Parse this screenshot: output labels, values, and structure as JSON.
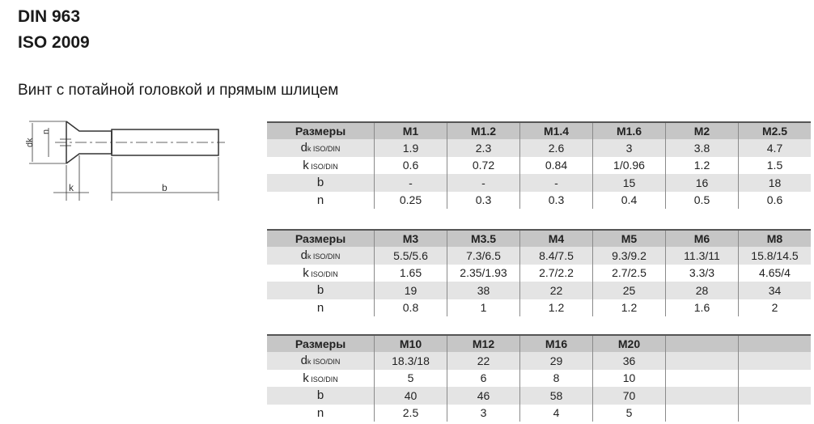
{
  "header": {
    "line1": "DIN 963",
    "line2": "ISO 2009"
  },
  "subtitle": "Винт с потайной головкой и прямым шлицем",
  "drawing": {
    "labels": {
      "dk": "dk",
      "n": "n",
      "k": "k",
      "b": "b"
    }
  },
  "row_labels": [
    {
      "main": "d",
      "sub": "k ISO/DIN"
    },
    {
      "main": "k",
      "sub": " ISO/DIN"
    },
    {
      "main": "b",
      "sub": ""
    },
    {
      "main": "n",
      "sub": ""
    }
  ],
  "tables": [
    {
      "header_label": "Размеры",
      "sizes": [
        "M1",
        "M1.2",
        "M1.4",
        "M1.6",
        "M2",
        "M2.5"
      ],
      "rows": [
        [
          "1.9",
          "2.3",
          "2.6",
          "3",
          "3.8",
          "4.7"
        ],
        [
          "0.6",
          "0.72",
          "0.84",
          "1/0.96",
          "1.2",
          "1.5"
        ],
        [
          "-",
          "-",
          "-",
          "15",
          "16",
          "18"
        ],
        [
          "0.25",
          "0.3",
          "0.3",
          "0.4",
          "0.5",
          "0.6"
        ]
      ]
    },
    {
      "header_label": "Размеры",
      "sizes": [
        "M3",
        "M3.5",
        "M4",
        "M5",
        "M6",
        "M8"
      ],
      "rows": [
        [
          "5.5/5.6",
          "7.3/6.5",
          "8.4/7.5",
          "9.3/9.2",
          "11.3/11",
          "15.8/14.5"
        ],
        [
          "1.65",
          "2.35/1.93",
          "2.7/2.2",
          "2.7/2.5",
          "3.3/3",
          "4.65/4"
        ],
        [
          "19",
          "38",
          "22",
          "25",
          "28",
          "34"
        ],
        [
          "0.8",
          "1",
          "1.2",
          "1.2",
          "1.6",
          "2"
        ]
      ]
    },
    {
      "header_label": "Размеры",
      "sizes": [
        "M10",
        "M12",
        "M16",
        "M20",
        "",
        ""
      ],
      "rows": [
        [
          "18.3/18",
          "22",
          "29",
          "36",
          "",
          ""
        ],
        [
          "5",
          "6",
          "8",
          "10",
          "",
          ""
        ],
        [
          "40",
          "46",
          "58",
          "70",
          "",
          ""
        ],
        [
          "2.5",
          "3",
          "4",
          "5",
          "",
          ""
        ]
      ]
    }
  ]
}
